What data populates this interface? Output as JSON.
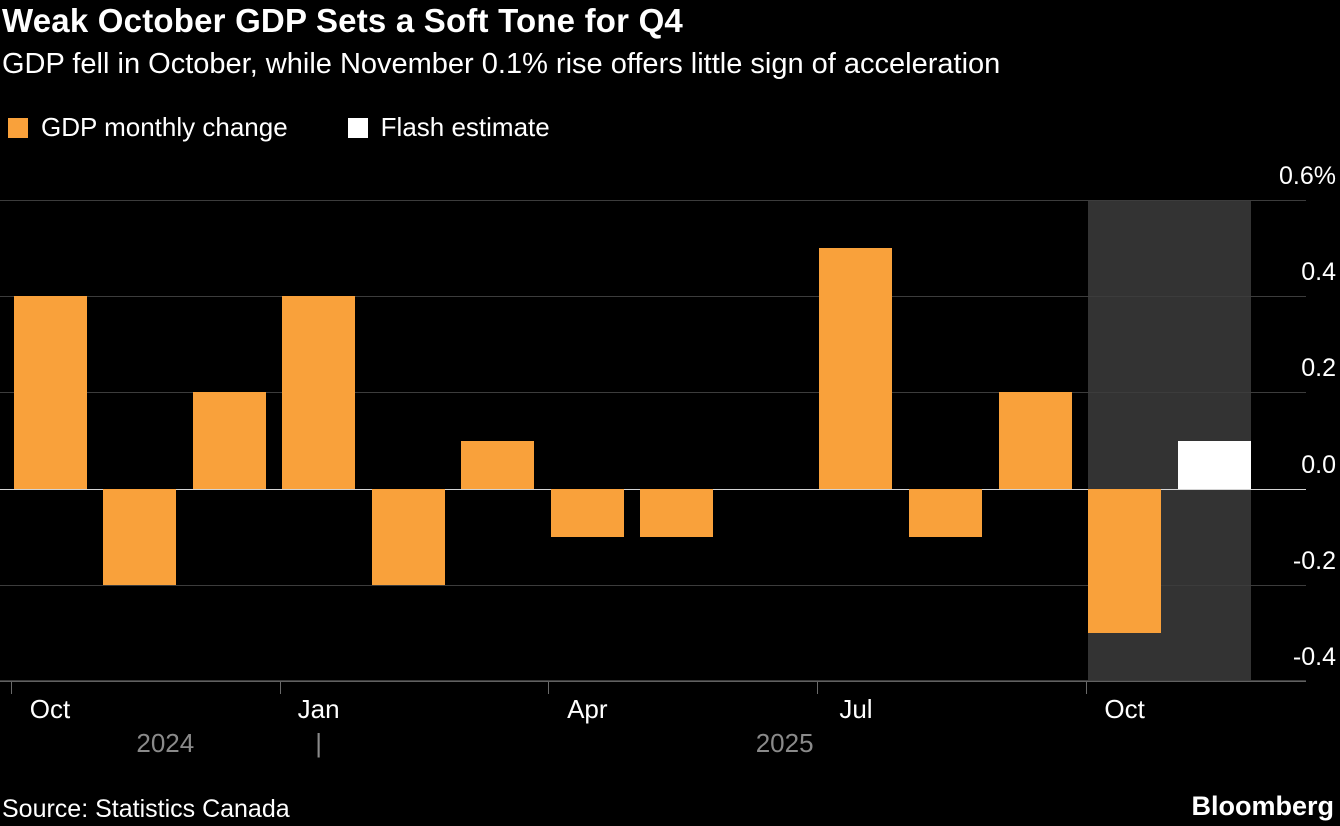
{
  "header": {
    "title": "Weak October GDP Sets a Soft Tone for Q4",
    "subtitle": "GDP fell in October, while November 0.1% rise offers little sign of acceleration"
  },
  "legend": [
    {
      "label": "GDP monthly change",
      "color": "#F9A13B"
    },
    {
      "label": "Flash estimate",
      "color": "#FFFFFF"
    }
  ],
  "chart_data": {
    "type": "bar",
    "title": "Weak October GDP Sets a Soft Tone for Q4",
    "subtitle": "GDP fell in October, while November 0.1% rise offers little sign of acceleration",
    "categories": [
      "Oct 2024",
      "Nov 2024",
      "Dec 2024",
      "Jan 2025",
      "Feb 2025",
      "Mar 2025",
      "Apr 2025",
      "May 2025",
      "Jun 2025",
      "Jul 2025",
      "Aug 2025",
      "Sep 2025",
      "Oct 2025",
      "Nov 2025"
    ],
    "series": [
      {
        "name": "GDP monthly change",
        "color": "#F9A13B",
        "values": [
          0.4,
          -0.2,
          0.2,
          0.4,
          -0.2,
          0.1,
          -0.1,
          -0.1,
          0.0,
          0.5,
          -0.1,
          0.2,
          -0.3,
          null
        ]
      },
      {
        "name": "Flash estimate",
        "color": "#FFFFFF",
        "values": [
          null,
          null,
          null,
          null,
          null,
          null,
          null,
          null,
          null,
          null,
          null,
          null,
          null,
          0.1
        ]
      }
    ],
    "ylabel": "GDP monthly change (%)",
    "xlabel": "",
    "ylim": [
      -0.4,
      0.6
    ],
    "yticks": [
      0.6,
      0.4,
      0.2,
      0.0,
      -0.2,
      -0.4
    ],
    "ytick_labels": [
      "0.6%",
      "0.4",
      "0.2",
      "0.0",
      "-0.2",
      "-0.4"
    ],
    "xticks": [
      {
        "index": 0,
        "label": "Oct"
      },
      {
        "index": 3,
        "label": "Jan"
      },
      {
        "index": 6,
        "label": "Apr"
      },
      {
        "index": 9,
        "label": "Jul"
      },
      {
        "index": 12,
        "label": "Oct"
      }
    ],
    "year_row": {
      "left_label": "2024",
      "divider": "|",
      "right_label": "2025",
      "divider_index": 3
    },
    "highlight": {
      "from_index": 12,
      "to_index": 13,
      "color": "#333333"
    },
    "grid": true,
    "zero_line_color": "#d4d4d4",
    "legend_position": "top"
  },
  "footer": {
    "source": "Source: Statistics Canada",
    "brand": "Bloomberg"
  }
}
